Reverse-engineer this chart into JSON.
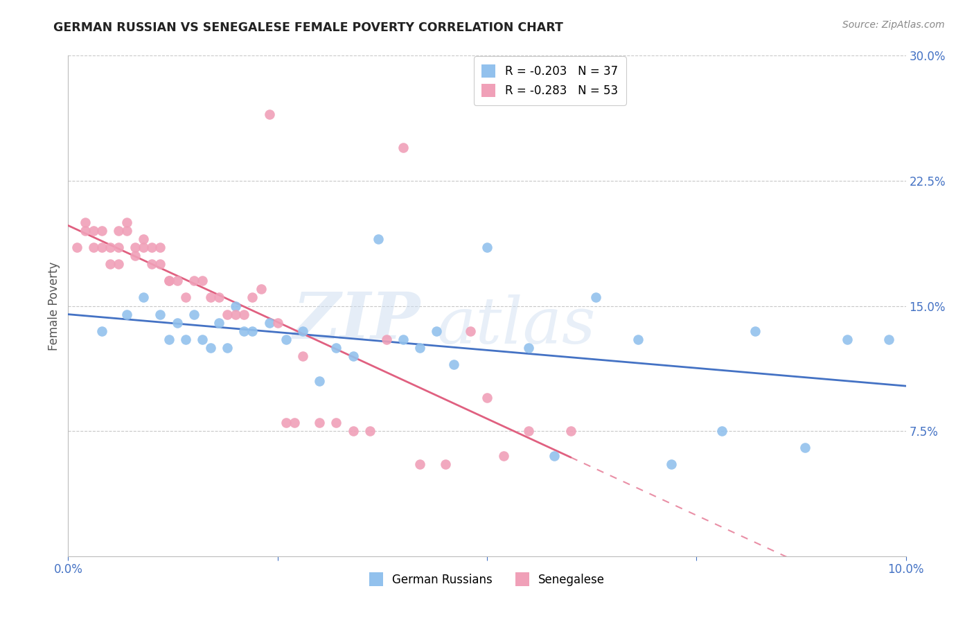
{
  "title": "GERMAN RUSSIAN VS SENEGALESE FEMALE POVERTY CORRELATION CHART",
  "source": "Source: ZipAtlas.com",
  "ylabel": "Female Poverty",
  "xlim": [
    0.0,
    0.1
  ],
  "ylim": [
    0.0,
    0.3
  ],
  "xtick_vals": [
    0.0,
    0.025,
    0.05,
    0.075,
    0.1
  ],
  "xtick_labels": [
    "0.0%",
    "",
    "",
    "",
    "10.0%"
  ],
  "ytick_vals": [
    0.075,
    0.15,
    0.225,
    0.3
  ],
  "ytick_labels": [
    "7.5%",
    "15.0%",
    "22.5%",
    "30.0%"
  ],
  "grid_color": "#c8c8c8",
  "background_color": "#ffffff",
  "blue_color": "#92C1ED",
  "pink_color": "#F0A0B8",
  "blue_line_color": "#4472C4",
  "pink_line_color": "#E06080",
  "axis_color": "#4472C4",
  "label_color": "#555555",
  "legend_R1": "R = -0.203",
  "legend_N1": "N = 37",
  "legend_R2": "R = -0.283",
  "legend_N2": "N = 53",
  "label_german": "German Russians",
  "label_senegalese": "Senegalese",
  "watermark_zip": "ZIP",
  "watermark_atlas": "atlas",
  "german_russian_x": [
    0.004,
    0.007,
    0.009,
    0.011,
    0.012,
    0.013,
    0.014,
    0.015,
    0.016,
    0.017,
    0.018,
    0.019,
    0.02,
    0.021,
    0.022,
    0.024,
    0.026,
    0.028,
    0.03,
    0.032,
    0.034,
    0.037,
    0.04,
    0.042,
    0.044,
    0.046,
    0.05,
    0.055,
    0.058,
    0.063,
    0.068,
    0.072,
    0.078,
    0.082,
    0.088,
    0.093,
    0.098
  ],
  "german_russian_y": [
    0.135,
    0.145,
    0.155,
    0.145,
    0.13,
    0.14,
    0.13,
    0.145,
    0.13,
    0.125,
    0.14,
    0.125,
    0.15,
    0.135,
    0.135,
    0.14,
    0.13,
    0.135,
    0.105,
    0.125,
    0.12,
    0.19,
    0.13,
    0.125,
    0.135,
    0.115,
    0.185,
    0.125,
    0.06,
    0.155,
    0.13,
    0.055,
    0.075,
    0.135,
    0.065,
    0.13,
    0.13
  ],
  "senegalese_x": [
    0.001,
    0.002,
    0.002,
    0.003,
    0.003,
    0.004,
    0.004,
    0.005,
    0.005,
    0.006,
    0.006,
    0.006,
    0.007,
    0.007,
    0.008,
    0.008,
    0.009,
    0.009,
    0.01,
    0.01,
    0.011,
    0.011,
    0.012,
    0.012,
    0.013,
    0.014,
    0.015,
    0.016,
    0.017,
    0.018,
    0.019,
    0.02,
    0.021,
    0.022,
    0.023,
    0.024,
    0.025,
    0.026,
    0.027,
    0.028,
    0.03,
    0.032,
    0.034,
    0.036,
    0.038,
    0.04,
    0.042,
    0.045,
    0.048,
    0.05,
    0.052,
    0.055,
    0.06
  ],
  "senegalese_y": [
    0.185,
    0.195,
    0.2,
    0.195,
    0.185,
    0.195,
    0.185,
    0.185,
    0.175,
    0.195,
    0.185,
    0.175,
    0.2,
    0.195,
    0.185,
    0.18,
    0.19,
    0.185,
    0.175,
    0.185,
    0.175,
    0.185,
    0.165,
    0.165,
    0.165,
    0.155,
    0.165,
    0.165,
    0.155,
    0.155,
    0.145,
    0.145,
    0.145,
    0.155,
    0.16,
    0.265,
    0.14,
    0.08,
    0.08,
    0.12,
    0.08,
    0.08,
    0.075,
    0.075,
    0.13,
    0.245,
    0.055,
    0.055,
    0.135,
    0.095,
    0.06,
    0.075,
    0.075
  ]
}
